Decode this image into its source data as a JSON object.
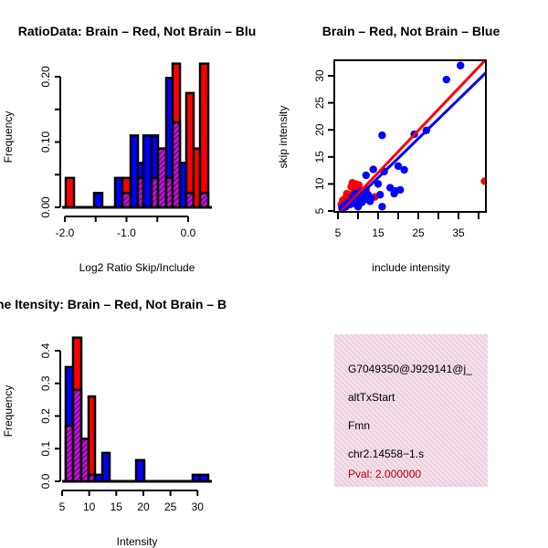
{
  "colors": {
    "red": "#ff0000",
    "blue": "#0000ff",
    "overlap": "#a010b0",
    "box_bg": "#f6d8f0",
    "pval": "#b00000"
  },
  "chart_data": [
    {
      "type": "bar",
      "title": "RatioData: Brain – Red, Not Brain – Blu",
      "xlabel": "Log2 Ratio Skip/Include",
      "ylabel": "Frequency",
      "xticks": [
        -2.0,
        -1.5,
        -1.0,
        -0.5,
        0.0
      ],
      "xtick_labels": [
        "-2.0",
        "",
        "-1.0",
        "",
        "0.0"
      ],
      "yticks": [
        0,
        0.05,
        0.1,
        0.15,
        0.2
      ],
      "ytick_labels": [
        "0.00",
        "",
        "0.10",
        "",
        "0.20"
      ],
      "series": [
        {
          "name": "Brain",
          "color": "red"
        },
        {
          "name": "Not Brain",
          "color": "blue"
        }
      ],
      "bins": [
        {
          "x0": -1.985,
          "x1": -1.852,
          "red": 0.045,
          "blue": 0
        },
        {
          "x0": -1.526,
          "x1": -1.393,
          "red": 0,
          "blue": 0.022
        },
        {
          "x0": -1.185,
          "x1": -1.067,
          "red": 0,
          "blue": 0.045
        },
        {
          "x0": -1.067,
          "x1": -0.933,
          "red": 0.045,
          "blue": 0.022
        },
        {
          "x0": -0.933,
          "x1": -0.815,
          "red": 0,
          "blue": 0.11
        },
        {
          "x0": -0.815,
          "x1": -0.726,
          "red": 0.045,
          "blue": 0.068
        },
        {
          "x0": -0.726,
          "x1": -0.593,
          "red": 0,
          "blue": 0.11
        },
        {
          "x0": -0.593,
          "x1": -0.489,
          "red": 0.045,
          "blue": 0.11
        },
        {
          "x0": -0.489,
          "x1": -0.356,
          "red": 0.09,
          "blue": 0.09
        },
        {
          "x0": -0.356,
          "x1": -0.252,
          "red": 0.045,
          "blue": 0.198
        },
        {
          "x0": -0.252,
          "x1": -0.133,
          "red": 0.22,
          "blue": 0.13
        },
        {
          "x0": -0.133,
          "x1": -0.03,
          "red": 0,
          "blue": 0.068
        },
        {
          "x0": -0.03,
          "x1": 0.089,
          "red": 0.175,
          "blue": 0.022
        },
        {
          "x0": 0.089,
          "x1": 0.193,
          "red": 0.09,
          "blue": 0
        },
        {
          "x0": 0.193,
          "x1": 0.326,
          "red": 0.22,
          "blue": 0.022
        }
      ]
    },
    {
      "type": "scatter",
      "title": "Brain – Red, Not Brain – Blue",
      "xlabel": "include intensity",
      "ylabel": "skip intensity",
      "xticks": [
        5,
        10,
        15,
        20,
        25,
        30,
        35,
        40
      ],
      "xtick_labels": [
        "5",
        "",
        "15",
        "",
        "25",
        "",
        "35",
        ""
      ],
      "yticks": [
        5,
        10,
        15,
        20,
        25,
        30
      ],
      "ytick_labels": [
        "5",
        "10",
        "15",
        "20",
        "25",
        "30"
      ],
      "xlim": [
        4.2,
        42
      ],
      "ylim": [
        4.8,
        32.9
      ],
      "red_points": [
        [
          5.8,
          6.2
        ],
        [
          6.2,
          7
        ],
        [
          6.5,
          6.5
        ],
        [
          7,
          7.5
        ],
        [
          7.2,
          8.2
        ],
        [
          7.5,
          6.8
        ],
        [
          8,
          8
        ],
        [
          8.3,
          9.5
        ],
        [
          8.6,
          10.2
        ],
        [
          9,
          9.2
        ],
        [
          9.4,
          10
        ],
        [
          9.8,
          8.5
        ],
        [
          10.2,
          9.8
        ],
        [
          10.5,
          7.2
        ],
        [
          11,
          8.2
        ],
        [
          11.5,
          7.6
        ],
        [
          12,
          9
        ],
        [
          13,
          7.4
        ],
        [
          14.2,
          7.6
        ],
        [
          6.8,
          6
        ],
        [
          41.5,
          10.5
        ]
      ],
      "blue_points": [
        [
          6,
          5.5
        ],
        [
          6.5,
          6
        ],
        [
          7,
          5.8
        ],
        [
          7.5,
          6.5
        ],
        [
          8,
          6.2
        ],
        [
          8.3,
          7
        ],
        [
          8.7,
          7.6
        ],
        [
          9,
          6.4
        ],
        [
          9.3,
          8.2
        ],
        [
          9.6,
          7
        ],
        [
          10,
          5.8
        ],
        [
          10.3,
          7.5
        ],
        [
          10.6,
          8.6
        ],
        [
          11,
          6.6
        ],
        [
          11.4,
          7.8
        ],
        [
          11.8,
          9
        ],
        [
          12,
          7.2
        ],
        [
          12.5,
          8
        ],
        [
          13,
          6.8
        ],
        [
          13.3,
          7.4
        ],
        [
          12,
          11.6
        ],
        [
          13.8,
          12.7
        ],
        [
          15,
          10
        ],
        [
          15.5,
          8
        ],
        [
          16,
          5.8
        ],
        [
          16,
          19
        ],
        [
          16.5,
          12.3
        ],
        [
          18,
          9.3
        ],
        [
          19,
          8.2
        ],
        [
          19.3,
          8.7
        ],
        [
          20,
          13.3
        ],
        [
          20.5,
          8.9
        ],
        [
          21.5,
          12.6
        ],
        [
          24,
          19.2
        ],
        [
          27,
          19.9
        ],
        [
          32,
          29.3
        ],
        [
          35.5,
          31.9
        ]
      ],
      "lines": [
        {
          "color": "red",
          "x": [
            5.7,
            41.8
          ],
          "y": [
            4.8,
            33
          ]
        },
        {
          "color": "blue",
          "x": [
            6.1,
            42
          ],
          "y": [
            4.7,
            30.7
          ]
        }
      ]
    },
    {
      "type": "bar",
      "title": "ne Itensity: Brain – Red, Not Brain – B",
      "xlabel": "Intensity",
      "ylabel": "Frequency",
      "xticks": [
        5,
        10,
        15,
        20,
        25,
        30
      ],
      "xtick_labels": [
        "5",
        "10",
        "15",
        "20",
        "25",
        "30"
      ],
      "yticks": [
        0,
        0.1,
        0.2,
        0.3,
        0.4
      ],
      "ytick_labels": [
        "0.0",
        "0.1",
        "0.2",
        "0.3",
        "0.4"
      ],
      "series": [
        {
          "name": "Brain",
          "color": "red"
        },
        {
          "name": "Not Brain",
          "color": "blue"
        }
      ],
      "bins": [
        {
          "x0": 5.67,
          "x1": 7.02,
          "red": 0.17,
          "blue": 0.35
        },
        {
          "x0": 7.02,
          "x1": 8.54,
          "red": 0.44,
          "blue": 0.28
        },
        {
          "x0": 8.54,
          "x1": 9.89,
          "red": 0.13,
          "blue": 0.13
        },
        {
          "x0": 9.89,
          "x1": 11.07,
          "red": 0.26,
          "blue": 0.02
        },
        {
          "x0": 11.07,
          "x1": 12.42,
          "red": 0,
          "blue": 0.02
        },
        {
          "x0": 12.42,
          "x1": 13.77,
          "red": 0,
          "blue": 0.087
        },
        {
          "x0": 18.66,
          "x1": 20.18,
          "red": 0,
          "blue": 0.065
        },
        {
          "x0": 29.11,
          "x1": 30.46,
          "red": 0,
          "blue": 0.02
        },
        {
          "x0": 30.46,
          "x1": 31.98,
          "red": 0,
          "blue": 0.02
        }
      ]
    }
  ],
  "info_box": {
    "id": "G7049350@J929141@j_",
    "event_type": "altTxStart",
    "gene": "Fmn",
    "location": "chr2.14558−1.s",
    "pval": "Pval: 2.000000"
  }
}
